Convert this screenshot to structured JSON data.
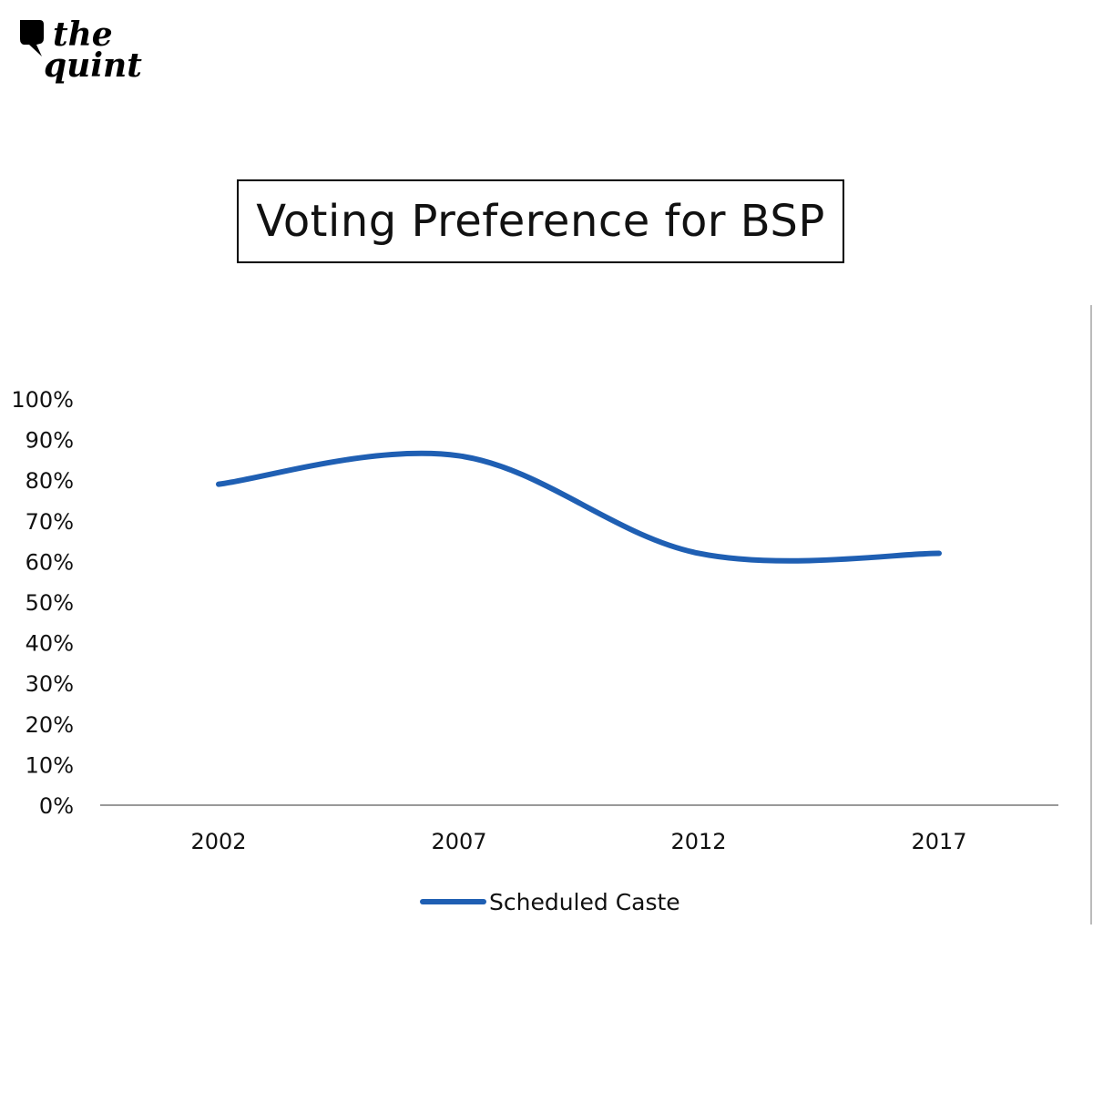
{
  "brand": {
    "line1": "the",
    "line2": "quint",
    "icon": "speech-bubble-icon"
  },
  "chart_data": {
    "type": "line",
    "title": "Voting Preference for BSP",
    "categories": [
      "2002",
      "2007",
      "2012",
      "2017"
    ],
    "series": [
      {
        "name": "Scheduled Caste",
        "values": [
          79,
          86,
          62,
          62
        ],
        "color": "#1f5fb3"
      }
    ],
    "yticks": [
      "0%",
      "10%",
      "20%",
      "30%",
      "40%",
      "50%",
      "60%",
      "70%",
      "80%",
      "90%",
      "100%"
    ],
    "ylim": [
      0,
      100
    ],
    "smooth": true,
    "grid": false,
    "legend": "bottom"
  }
}
